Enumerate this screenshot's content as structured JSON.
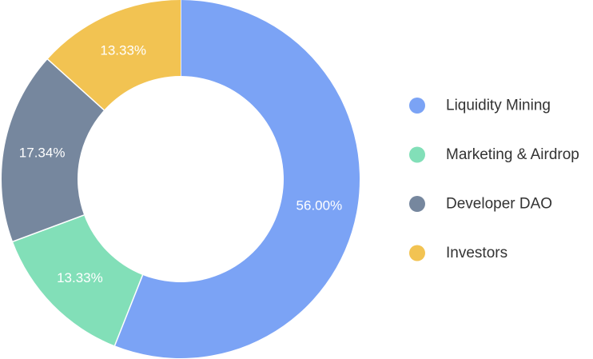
{
  "chart_data": {
    "type": "pie",
    "style": "donut",
    "title": "",
    "legend_position": "right",
    "series": [
      {
        "name": "Liquidity Mining",
        "value": 56.0,
        "label": "56.00%",
        "color": "#7ba3f5"
      },
      {
        "name": "Marketing & Airdrop",
        "value": 13.33,
        "label": "13.33%",
        "color": "#82dfb8"
      },
      {
        "name": "Developer DAO",
        "value": 17.34,
        "label": "17.34%",
        "color": "#76879e"
      },
      {
        "name": "Investors",
        "value": 13.33,
        "label": "13.33%",
        "color": "#f2c352"
      }
    ]
  }
}
